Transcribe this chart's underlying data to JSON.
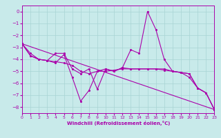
{
  "xlabel": "Windchill (Refroidissement éolien,°C)",
  "xlim": [
    0,
    23
  ],
  "ylim": [
    -8.5,
    0.5
  ],
  "xticks": [
    0,
    1,
    2,
    3,
    4,
    5,
    6,
    7,
    8,
    9,
    10,
    11,
    12,
    13,
    14,
    15,
    16,
    17,
    18,
    19,
    20,
    21,
    22,
    23
  ],
  "yticks": [
    0,
    -1,
    -2,
    -3,
    -4,
    -5,
    -6,
    -7,
    -8
  ],
  "bg_color": "#c8eaea",
  "grid_color": "#a8d4d4",
  "line_color": "#aa00aa",
  "series1_x": [
    0,
    1,
    2,
    3,
    4,
    5,
    6,
    7,
    8,
    9,
    10,
    11,
    12,
    13,
    14,
    15,
    16,
    17,
    18,
    19,
    20,
    21,
    22,
    23
  ],
  "series1_y": [
    -2.7,
    -3.7,
    -4.0,
    -4.1,
    -3.5,
    -3.5,
    -4.8,
    -5.2,
    -4.8,
    -6.5,
    -4.8,
    -5.0,
    -4.7,
    -3.2,
    -3.5,
    0.0,
    -1.5,
    -4.0,
    -5.0,
    -5.1,
    -5.5,
    -6.4,
    -6.8,
    -8.2
  ],
  "series2_x": [
    0,
    1,
    2,
    3,
    4,
    5,
    6,
    7,
    8,
    9,
    10,
    11,
    12,
    13,
    14,
    15,
    16,
    17,
    18,
    19,
    20,
    21,
    22,
    23
  ],
  "series2_y": [
    -2.7,
    -3.7,
    -4.0,
    -4.1,
    -4.2,
    -4.3,
    -4.5,
    -5.0,
    -5.2,
    -5.0,
    -5.0,
    -4.9,
    -4.8,
    -4.8,
    -4.8,
    -4.8,
    -4.8,
    -4.9,
    -5.0,
    -5.1,
    -5.2,
    -6.4,
    -6.8,
    -8.2
  ],
  "series3_x": [
    0,
    1,
    2,
    3,
    4,
    5,
    6,
    7,
    8,
    9,
    10,
    11,
    12,
    13,
    14,
    15,
    16,
    17,
    18,
    19,
    20,
    21,
    22,
    23
  ],
  "series3_y": [
    -2.7,
    -3.5,
    -4.0,
    -4.1,
    -4.3,
    -3.6,
    -5.5,
    -7.5,
    -6.6,
    -5.0,
    -4.8,
    -5.0,
    -4.7,
    -4.8,
    -4.8,
    -4.8,
    -4.8,
    -4.8,
    -5.0,
    -5.1,
    -5.2,
    -6.4,
    -6.8,
    -8.2
  ],
  "series4_x": [
    0,
    23
  ],
  "series4_y": [
    -2.7,
    -8.2
  ]
}
